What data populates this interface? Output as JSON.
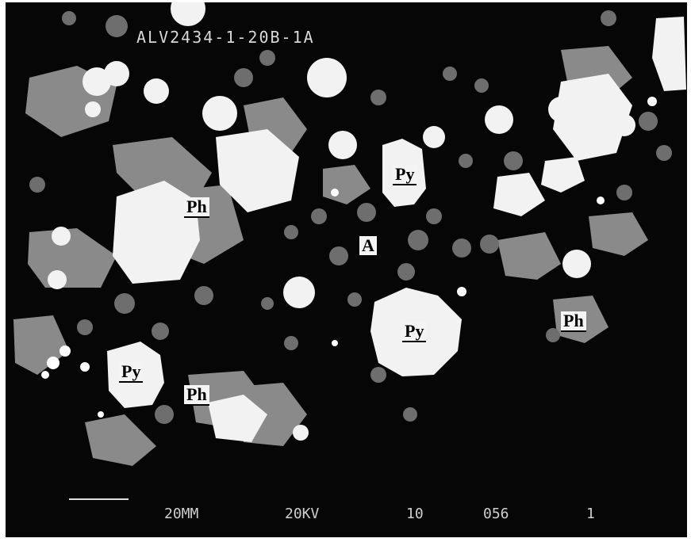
{
  "micrograph": {
    "sample_id": "ALV2434-1-20B-1A",
    "labels": [
      {
        "id": "py1",
        "text": "Py"
      },
      {
        "id": "ph1",
        "text": "Ph"
      },
      {
        "id": "a1",
        "text": "A"
      },
      {
        "id": "py2",
        "text": "Py"
      },
      {
        "id": "ph2",
        "text": "Ph"
      },
      {
        "id": "py3",
        "text": "Py"
      },
      {
        "id": "ph3",
        "text": "Ph"
      }
    ],
    "footer": {
      "scale": "20ΜM",
      "voltage": "20KV",
      "field3": "10",
      "field4": "056",
      "field5": "1"
    }
  }
}
